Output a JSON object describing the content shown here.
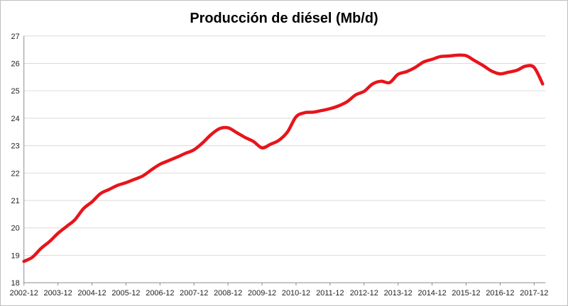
{
  "chart_data": {
    "type": "line",
    "title": "Producción de diésel (Mb/d)",
    "xlabel": "",
    "ylabel": "",
    "ylim": [
      18,
      27
    ],
    "yticks": [
      18,
      19,
      20,
      21,
      22,
      23,
      24,
      25,
      26,
      27
    ],
    "grid": true,
    "legend": "none",
    "color": "#e8141b",
    "x_tick_labels": [
      "2002-12",
      "2003-12",
      "2004-12",
      "2005-12",
      "2006-12",
      "2007-12",
      "2008-12",
      "2009-12",
      "2010-12",
      "2011-12",
      "2012-12",
      "2013-12",
      "2014-12",
      "2015-12",
      "2016-12",
      "2017-12"
    ],
    "series": [
      {
        "x": [
          "2002-12",
          "2003-03",
          "2003-06",
          "2003-09",
          "2003-12",
          "2004-03",
          "2004-06",
          "2004-09",
          "2004-12",
          "2005-03",
          "2005-06",
          "2005-09",
          "2005-12",
          "2006-03",
          "2006-06",
          "2006-09",
          "2006-12",
          "2007-03",
          "2007-06",
          "2007-09",
          "2007-12",
          "2008-03",
          "2008-06",
          "2008-09",
          "2008-12",
          "2009-03",
          "2009-06",
          "2009-09",
          "2009-12",
          "2010-03",
          "2010-06",
          "2010-09",
          "2010-12",
          "2011-03",
          "2011-06",
          "2011-09",
          "2011-12",
          "2012-03",
          "2012-06",
          "2012-09",
          "2012-12",
          "2013-03",
          "2013-06",
          "2013-09",
          "2013-12",
          "2014-03",
          "2014-06",
          "2014-09",
          "2014-12",
          "2015-03",
          "2015-06",
          "2015-09",
          "2015-12",
          "2016-03",
          "2016-06",
          "2016-09",
          "2016-12",
          "2017-03",
          "2017-06",
          "2017-09",
          "2017-12",
          "2018-03"
        ],
        "values": [
          18.78,
          18.93,
          19.25,
          19.5,
          19.8,
          20.05,
          20.3,
          20.7,
          20.95,
          21.25,
          21.4,
          21.55,
          21.65,
          21.77,
          21.9,
          22.12,
          22.32,
          22.45,
          22.58,
          22.72,
          22.85,
          23.1,
          23.4,
          23.62,
          23.65,
          23.48,
          23.3,
          23.15,
          22.92,
          23.05,
          23.2,
          23.5,
          24.05,
          24.2,
          24.22,
          24.28,
          24.35,
          24.45,
          24.6,
          24.85,
          24.98,
          25.25,
          25.35,
          25.3,
          25.6,
          25.7,
          25.85,
          26.05,
          26.15,
          26.25,
          26.27,
          26.3,
          26.28,
          26.1,
          25.92,
          25.72,
          25.62,
          25.68,
          25.75,
          25.9,
          25.85,
          25.25
        ]
      }
    ]
  }
}
